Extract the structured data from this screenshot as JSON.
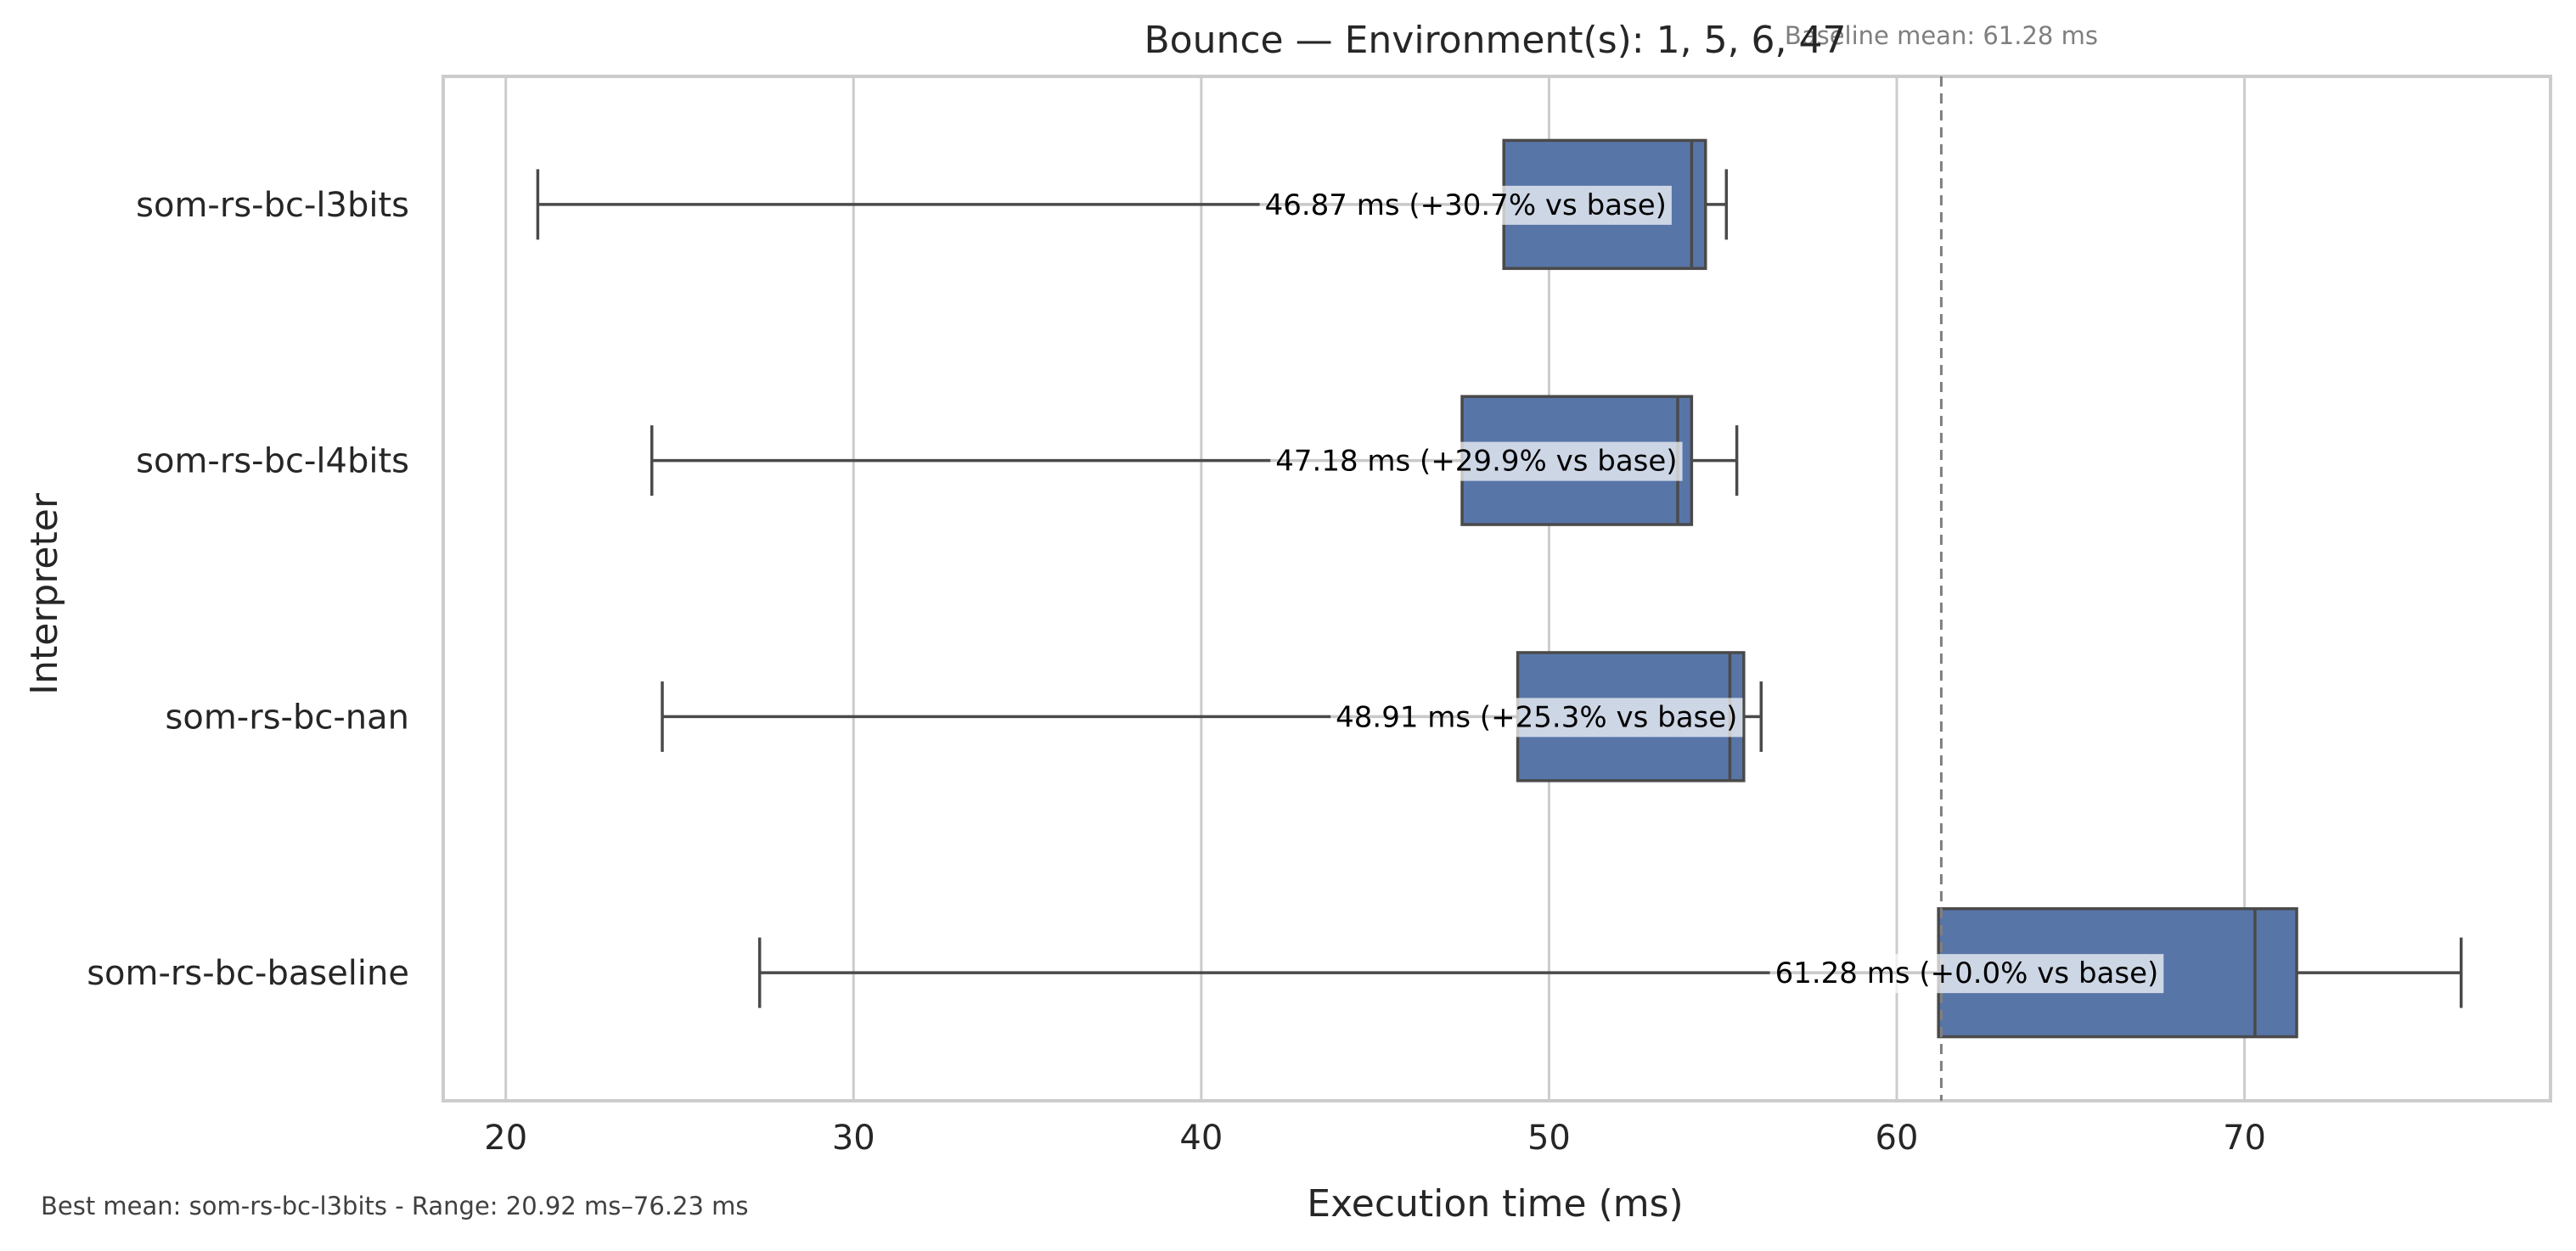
{
  "chart_data": {
    "type": "boxplot",
    "orientation": "horizontal",
    "title": "Bounce — Environment(s): 1, 5, 6, 47",
    "xlabel": "Execution time (ms)",
    "ylabel": "Interpreter",
    "xlim": [
      18.2,
      78.8
    ],
    "xticks": [
      20,
      30,
      40,
      50,
      60,
      70
    ],
    "grid": "vertical",
    "box_color": "#5875a7",
    "line_color": "#4a4a4a",
    "baseline_line_color": "#808080",
    "baseline": {
      "value": 61.28,
      "label": "Baseline mean: 61.28 ms"
    },
    "categories": [
      "som-rs-bc-l3bits",
      "som-rs-bc-l4bits",
      "som-rs-bc-nan",
      "som-rs-bc-baseline"
    ],
    "series": [
      {
        "category": "som-rs-bc-l3bits",
        "whisker_low": 20.92,
        "q1": 48.7,
        "median": 54.1,
        "q3": 54.5,
        "whisker_high": 55.1,
        "mean": 46.87,
        "annotation": "46.87 ms  (+30.7% vs base)"
      },
      {
        "category": "som-rs-bc-l4bits",
        "whisker_low": 24.2,
        "q1": 47.5,
        "median": 53.7,
        "q3": 54.1,
        "whisker_high": 55.4,
        "mean": 47.18,
        "annotation": "47.18 ms  (+29.9% vs base)"
      },
      {
        "category": "som-rs-bc-nan",
        "whisker_low": 24.5,
        "q1": 49.1,
        "median": 55.2,
        "q3": 55.6,
        "whisker_high": 56.1,
        "mean": 48.91,
        "annotation": "48.91 ms  (+25.3% vs base)"
      },
      {
        "category": "som-rs-bc-baseline",
        "whisker_low": 27.3,
        "q1": 61.2,
        "median": 70.3,
        "q3": 71.5,
        "whisker_high": 76.23,
        "mean": 61.28,
        "annotation": "61.28 ms  (+0.0% vs base)"
      }
    ],
    "footer": "Best mean: som-rs-bc-l3bits - Range: 20.92 ms–76.23 ms"
  }
}
